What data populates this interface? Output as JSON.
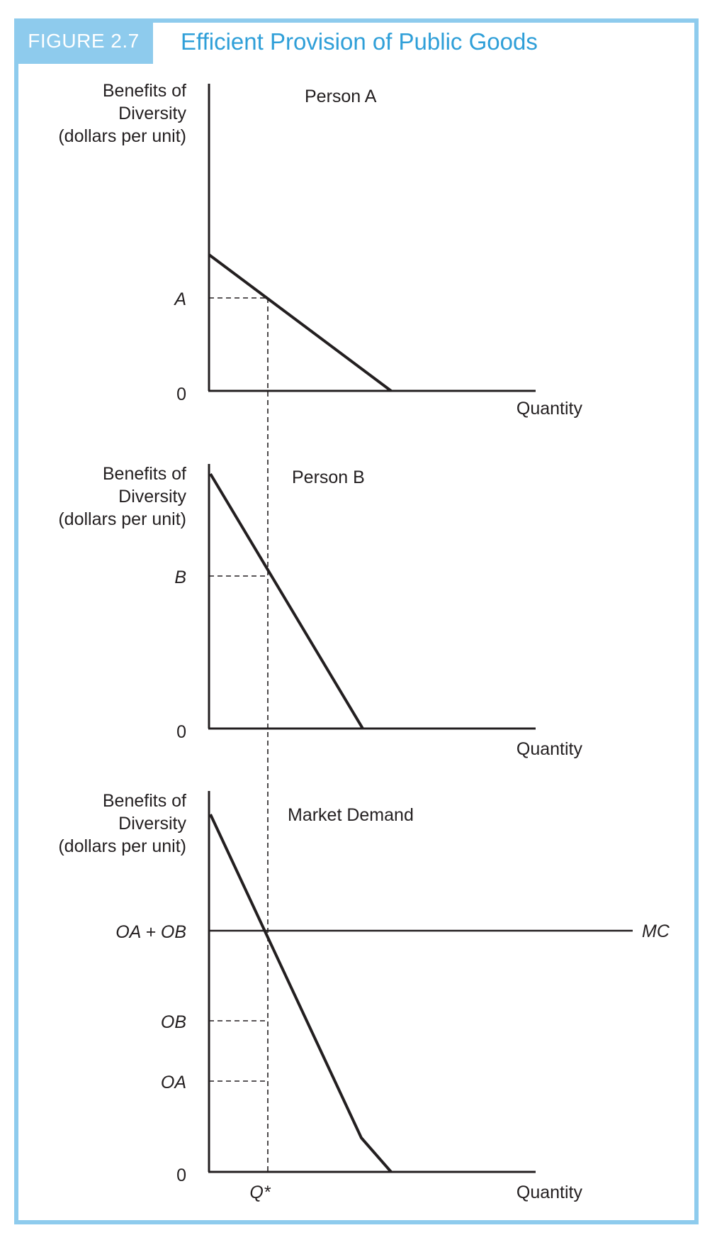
{
  "figure": {
    "number": "FIGURE 2.7",
    "title": "Efficient Provision of Public Goods"
  },
  "panels": [
    {
      "title": "Person A",
      "ylabel": [
        "Benefits of",
        "Diversity",
        "(dollars per unit)"
      ],
      "xlabel": "Quantity",
      "zero": "0",
      "tick_label": "A"
    },
    {
      "title": "Person B",
      "ylabel": [
        "Benefits of",
        "Diversity",
        "(dollars per unit)"
      ],
      "xlabel": "Quantity",
      "zero": "0",
      "tick_label": "B"
    },
    {
      "title": "Market Demand",
      "ylabel": [
        "Benefits of",
        "Diversity",
        "(dollars per unit)"
      ],
      "xlabel": "Quantity",
      "zero": "0",
      "tick_labels": [
        "OA + OB",
        "OB",
        "OA"
      ],
      "mc_label": "MC",
      "q_label": "Q*"
    }
  ],
  "colors": {
    "frame": "#8ecbed",
    "title": "#2f9fd8",
    "ink": "#231f20"
  }
}
